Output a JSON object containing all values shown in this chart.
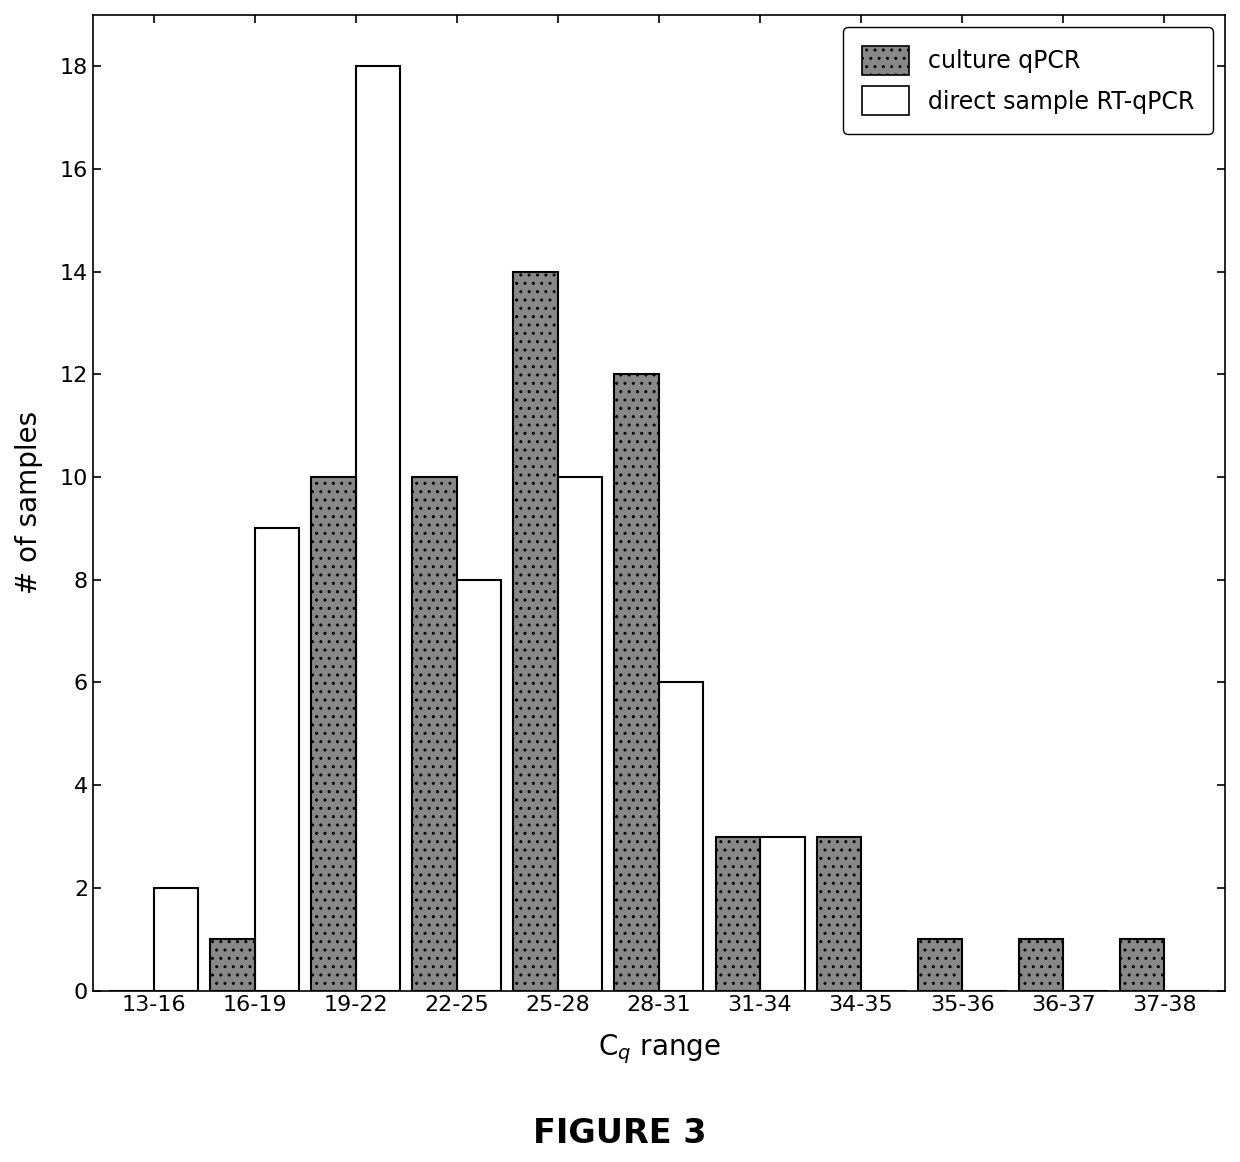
{
  "categories": [
    "13-16",
    "16-19",
    "19-22",
    "22-25",
    "25-28",
    "28-31",
    "31-34",
    "34-35",
    "35-36",
    "36-37",
    "37-38"
  ],
  "culture_qpcr": [
    0,
    1,
    10,
    10,
    14,
    12,
    3,
    3,
    1,
    1,
    1
  ],
  "direct_rt_qpcr": [
    2,
    9,
    18,
    8,
    10,
    6,
    3,
    0,
    0,
    0,
    0
  ],
  "culture_color": "#888888",
  "direct_color": "#ffffff",
  "culture_hatch": "..",
  "direct_hatch": "",
  "bar_edgecolor": "#000000",
  "bar_linewidth": 1.5,
  "xlabel": "C$_q$ range",
  "ylabel": "# of samples",
  "ylim": [
    0,
    19
  ],
  "yticks": [
    0,
    2,
    4,
    6,
    8,
    10,
    12,
    14,
    16,
    18
  ],
  "legend_culture": "culture qPCR",
  "legend_direct": "direct sample RT-qPCR",
  "figure_title": "FIGURE 3",
  "title_fontsize": 24,
  "axis_fontsize": 20,
  "tick_fontsize": 16,
  "legend_fontsize": 17,
  "background_color": "#ffffff",
  "bar_width": 0.44,
  "figsize": [
    12.4,
    11.62
  ],
  "dpi": 100
}
